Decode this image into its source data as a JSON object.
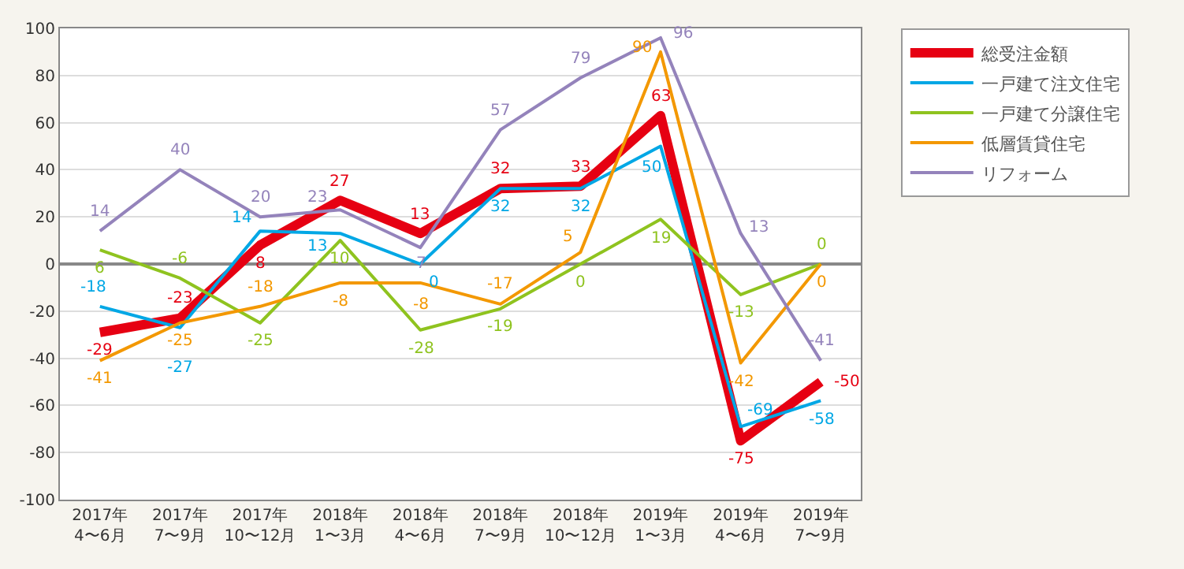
{
  "chart_data": {
    "type": "line",
    "categories": [
      "2017年\n4〜6月",
      "2017年\n7〜9月",
      "2017年\n10〜12月",
      "2018年\n1〜3月",
      "2018年\n4〜6月",
      "2018年\n7〜9月",
      "2018年\n10〜12月",
      "2019年\n1〜3月",
      "2019年\n4〜6月",
      "2019年\n7〜9月"
    ],
    "series": [
      {
        "name": "総受注金額",
        "color": "#e60012",
        "values": [
          -29,
          -23,
          8,
          27,
          13,
          32,
          33,
          63,
          -75,
          -50
        ]
      },
      {
        "name": "一戸建て注文住宅",
        "color": "#00a7e5",
        "values": [
          -18,
          -27,
          14,
          13,
          0,
          32,
          32,
          50,
          -69,
          -58
        ]
      },
      {
        "name": "一戸建て分譲住宅",
        "color": "#8fc31f",
        "values": [
          6,
          -6,
          -25,
          10,
          -28,
          -19,
          0,
          19,
          -13,
          0
        ]
      },
      {
        "name": "低層賃貸住宅",
        "color": "#f39800",
        "values": [
          -41,
          -25,
          -18,
          -8,
          -8,
          -17,
          5,
          90,
          -42,
          0
        ]
      },
      {
        "name": "リフォーム",
        "color": "#9483bb",
        "values": [
          14,
          40,
          20,
          23,
          7,
          57,
          79,
          96,
          13,
          -41
        ]
      }
    ],
    "ylim": [
      -100,
      100
    ],
    "yticks": [
      -100,
      -80,
      -60,
      -40,
      -20,
      0,
      20,
      40,
      60,
      80,
      100
    ],
    "grid": "y",
    "legend": "right",
    "data_labels": true,
    "marker": "none",
    "line_style": "solid"
  }
}
